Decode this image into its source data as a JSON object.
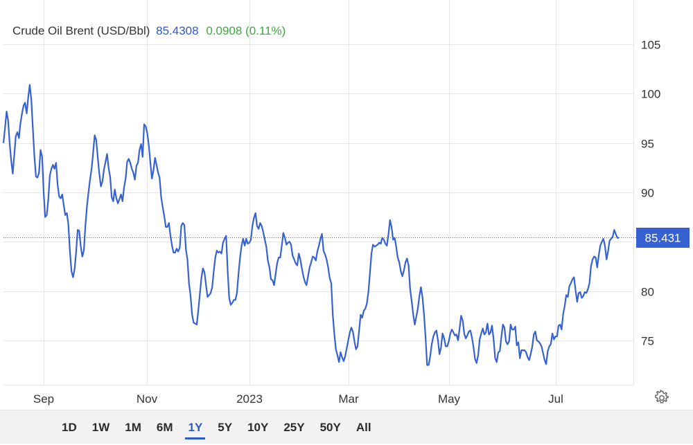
{
  "legend": {
    "name": "Crude Oil Brent (USD/Bbl)",
    "price": "85.4308",
    "change": "0.0908 (0.11%)"
  },
  "ranges": [
    "1D",
    "1W",
    "1M",
    "6M",
    "1Y",
    "5Y",
    "10Y",
    "25Y",
    "50Y",
    "All"
  ],
  "active_range": "1Y",
  "colors": {
    "line": "#3561d3",
    "price_label_bg": "#3561d3",
    "change": "#3caa3c",
    "active": "#2c5ac8"
  },
  "icons": {
    "settings": "gear-icon"
  },
  "chart_data": {
    "type": "line",
    "series": [
      {
        "values": [
          95.0,
          96.5,
          98.2,
          97.3,
          95.0,
          93.2,
          91.9,
          93.8,
          95.7,
          96.1,
          95.5,
          97.0,
          98.0,
          98.8,
          99.1,
          98.0,
          99.6,
          100.9,
          99.4,
          96.5,
          93.7,
          91.6,
          91.5,
          92.0,
          94.3,
          93.6,
          90.0,
          87.5,
          87.7,
          89.3,
          91.7,
          92.4,
          92.8,
          92.4,
          93.0,
          90.8,
          89.6,
          89.4,
          89.8,
          88.7,
          87.7,
          87.9,
          86.7,
          84.0,
          82.0,
          81.4,
          82.2,
          84.0,
          86.2,
          86.1,
          84.5,
          83.5,
          84.1,
          86.7,
          88.6,
          90.0,
          91.3,
          92.4,
          94.0,
          95.8,
          95.3,
          93.5,
          91.9,
          90.6,
          91.1,
          92.3,
          93.1,
          93.9,
          92.5,
          91.6,
          89.5,
          89.1,
          90.3,
          89.4,
          88.9,
          89.3,
          89.8,
          89.1,
          90.5,
          91.4,
          93.1,
          93.4,
          93.0,
          92.4,
          92.0,
          91.3,
          92.7,
          93.0,
          94.3,
          94.9,
          93.6,
          96.9,
          96.7,
          96.0,
          94.8,
          93.0,
          91.4,
          92.2,
          93.5,
          92.8,
          92.0,
          91.5,
          89.5,
          88.5,
          87.6,
          86.5,
          86.5,
          86.9,
          85.6,
          84.6,
          83.9,
          83.9,
          84.3,
          84.0,
          84.4,
          86.6,
          86.9,
          86.7,
          84.2,
          83.2,
          80.8,
          79.5,
          77.6,
          76.8,
          76.7,
          76.6,
          78.0,
          79.7,
          81.3,
          82.3,
          81.9,
          80.6,
          79.4,
          79.6,
          79.8,
          80.4,
          82.0,
          83.4,
          84.1,
          83.9,
          84.0,
          83.8,
          84.9,
          85.3,
          85.6,
          82.1,
          79.3,
          78.6,
          78.8,
          79.1,
          79.1,
          79.8,
          81.7,
          83.4,
          84.6,
          85.3,
          84.6,
          85.3,
          84.8,
          84.9,
          85.2,
          86.6,
          87.4,
          87.9,
          86.6,
          86.3,
          86.9,
          86.6,
          86.0,
          85.2,
          84.5,
          83.1,
          82.4,
          81.2,
          81.1,
          80.6,
          81.7,
          82.8,
          83.4,
          83.4,
          84.6,
          85.9,
          85.4,
          84.7,
          84.9,
          85.0,
          84.7,
          83.6,
          83.2,
          82.8,
          82.6,
          83.8,
          83.2,
          82.3,
          81.5,
          80.9,
          80.6,
          81.5,
          82.4,
          82.9,
          83.5,
          83.4,
          83.1,
          84.0,
          84.6,
          85.3,
          85.8,
          84.1,
          83.7,
          83.2,
          82.4,
          81.3,
          80.8,
          77.6,
          75.6,
          74.1,
          73.5,
          72.8,
          73.8,
          73.3,
          72.9,
          73.4,
          74.2,
          75.0,
          75.8,
          76.3,
          75.9,
          74.9,
          74.1,
          74.4,
          76.0,
          77.6,
          77.3,
          78.0,
          78.2,
          78.7,
          79.9,
          81.8,
          83.8,
          84.7,
          84.5,
          84.6,
          84.7,
          84.9,
          84.8,
          85.4,
          85.2,
          84.8,
          84.6,
          85.8,
          87.2,
          86.5,
          85.2,
          85.4,
          84.5,
          83.4,
          82.9,
          82.0,
          81.5,
          82.1,
          82.9,
          83.3,
          82.6,
          80.2,
          79.0,
          77.6,
          76.6,
          77.4,
          78.2,
          79.5,
          80.4,
          79.4,
          77.6,
          75.3,
          72.5,
          72.5,
          73.4,
          74.6,
          75.4,
          75.8,
          76.0,
          75.0,
          73.6,
          74.3,
          75.7,
          75.2,
          74.4,
          74.4,
          74.9,
          75.7,
          76.1,
          75.8,
          75.5,
          75.6,
          75.0,
          76.2,
          77.5,
          77.0,
          75.7,
          75.2,
          75.5,
          75.9,
          76.0,
          75.3,
          74.3,
          73.1,
          72.7,
          73.5,
          75.1,
          75.7,
          76.2,
          75.6,
          75.8,
          76.7,
          75.6,
          75.8,
          76.5,
          75.1,
          73.2,
          72.8,
          73.8,
          73.9,
          75.3,
          76.6,
          76.3,
          74.9,
          74.6,
          74.9,
          76.6,
          76.1,
          76.1,
          76.4,
          74.5,
          74.8,
          73.2,
          74.0,
          74.0,
          74.0,
          73.8,
          73.3,
          73.0,
          73.6,
          74.4,
          75.6,
          75.9,
          75.0,
          74.9,
          74.7,
          74.4,
          73.7,
          73.0,
          72.6,
          73.9,
          74.4,
          74.6,
          75.7,
          75.1,
          75.4,
          75.4,
          76.5,
          76.6,
          76.1,
          77.7,
          78.5,
          79.6,
          79.4,
          80.5,
          80.8,
          81.2,
          81.4,
          80.1,
          78.9,
          79.8,
          79.9,
          79.3,
          79.5,
          79.9,
          79.8,
          80.2,
          80.8,
          82.5,
          83.2,
          83.5,
          83.4,
          82.4,
          83.6,
          84.6,
          85.0,
          85.3,
          84.6,
          83.2,
          84.0,
          85.1,
          85.3,
          85.5,
          86.2,
          85.8,
          85.4,
          85.4
        ],
        "color": "#3561d3"
      }
    ],
    "x_tick_labels": [
      "Sep",
      "Nov",
      "2023",
      "Mar",
      "May",
      "Jul"
    ],
    "y_ticks": [
      75,
      80,
      85,
      90,
      95,
      100,
      105
    ],
    "ylim": [
      70.5,
      109.5
    ],
    "last_value_label": "85.431",
    "last_value": 85.431,
    "grid": true
  }
}
